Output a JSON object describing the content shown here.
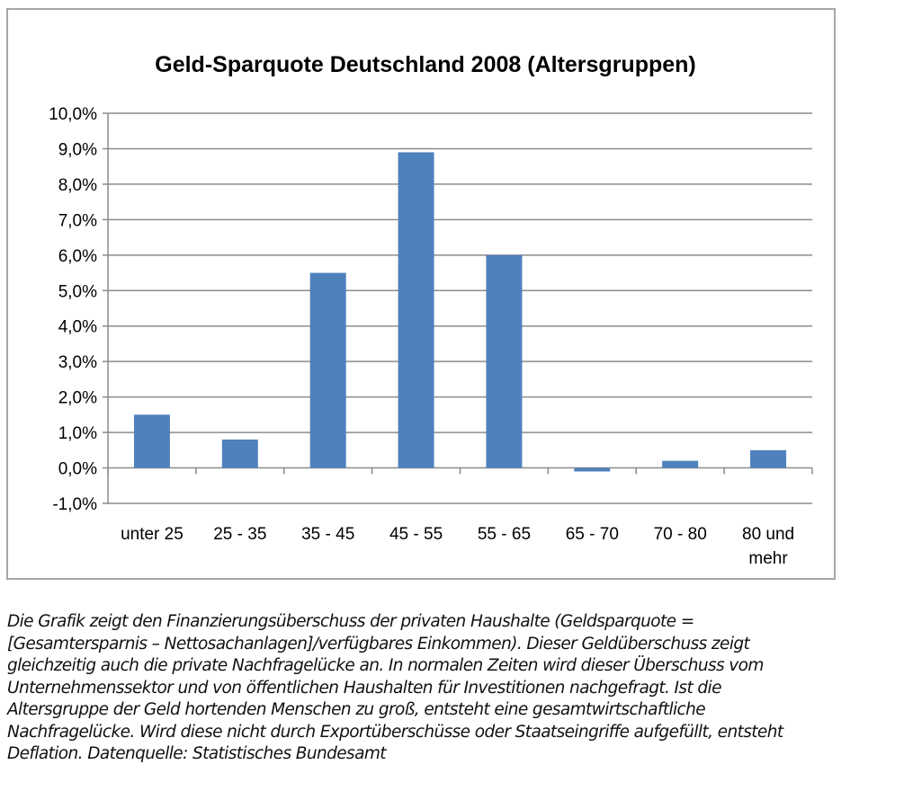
{
  "chart_data": {
    "type": "bar",
    "title": "Geld-Sparquote Deutschland 2008 (Altersgruppen)",
    "categories": [
      "unter 25",
      "25 - 35",
      "35 - 45",
      "45 - 55",
      "55 - 65",
      "65 - 70",
      "70 - 80",
      "80 und mehr"
    ],
    "category_lines": [
      [
        "unter 25"
      ],
      [
        "25 - 35"
      ],
      [
        "35 - 45"
      ],
      [
        "45 - 55"
      ],
      [
        "55 - 65"
      ],
      [
        "65 - 70"
      ],
      [
        "70 - 80"
      ],
      [
        "80 und",
        "mehr"
      ]
    ],
    "values": [
      1.5,
      0.8,
      5.5,
      8.9,
      6.0,
      -0.1,
      0.2,
      0.5
    ],
    "ylim": [
      -1,
      10
    ],
    "yticks": [
      -1,
      0,
      1,
      2,
      3,
      4,
      5,
      6,
      7,
      8,
      9,
      10
    ],
    "ytick_labels": [
      "-1,0%",
      "0,0%",
      "1,0%",
      "2,0%",
      "3,0%",
      "4,0%",
      "5,0%",
      "6,0%",
      "7,0%",
      "8,0%",
      "9,0%",
      "10,0%"
    ],
    "xlabel": "",
    "ylabel": "",
    "grid": true,
    "bar_color": "#4f81bd"
  },
  "caption": [
    "Die Grafik zeigt den Finanzierungsüberschuss der privaten Haushalte (Geldsparquote =",
    "[Gesamtersparnis – Nettosachanlagen]/verfügbares Einkommen). Dieser Geldüberschuss zeigt",
    "gleichzeitig auch die private Nachfragelücke an. In normalen Zeiten wird dieser Überschuss vom",
    "Unternehmenssektor und von öffentlichen Haushalten für Investitionen nachgefragt. Ist die",
    "Altersgruppe der Geld hortenden Menschen zu groß, entsteht eine gesamtwirtschaftliche",
    "Nachfragelücke. Wird diese nicht durch Exportüberschüsse oder Staatseingriffe aufgefüllt, entsteht",
    "Deflation. Datenquelle: Statistisches Bundesamt"
  ]
}
